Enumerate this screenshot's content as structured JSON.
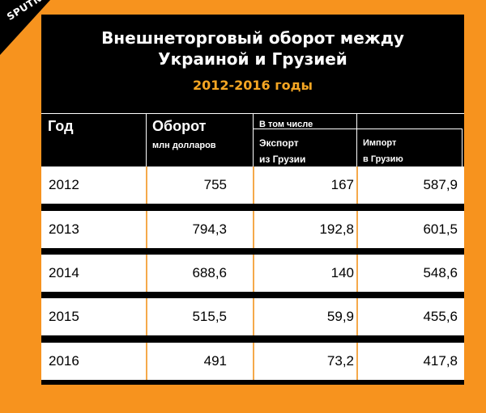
{
  "logo": {
    "text": "SPUTNIK"
  },
  "title_line1": "Внешнеторговый оборот между",
  "title_line2": "Украиной и Грузией",
  "subtitle": "2012-2016 годы",
  "header": {
    "year": "Год",
    "turnover": "Оборот",
    "turnover_unit": "млн долларов",
    "including": "В том числе",
    "export_line1": "Экспорт",
    "export_line2": "из Грузии",
    "import_line1": "Импорт",
    "import_line2": "в Грузию"
  },
  "chart_data": {
    "type": "table",
    "title": "Внешнеторговый оборот между Украиной и Грузией",
    "subtitle": "2012-2016 годы",
    "columns": [
      "Год",
      "Оборот млн долларов",
      "Экспорт из Грузии",
      "Импорт в Грузию"
    ],
    "rows": [
      {
        "year": "2012",
        "turnover": "755",
        "export": "167",
        "import": "587,9"
      },
      {
        "year": "2013",
        "turnover": "794,3",
        "export": "192,8",
        "import": "601,5"
      },
      {
        "year": "2014",
        "turnover": "688,6",
        "export": "140",
        "import": "548,6"
      },
      {
        "year": "2015",
        "turnover": "515,5",
        "export": "59,9",
        "import": "455,6"
      },
      {
        "year": "2016",
        "turnover": "491",
        "export": "73,2",
        "import": "417,8"
      }
    ]
  },
  "colors": {
    "background": "#f7931e",
    "card": "#000000",
    "accent": "#f5a623"
  }
}
